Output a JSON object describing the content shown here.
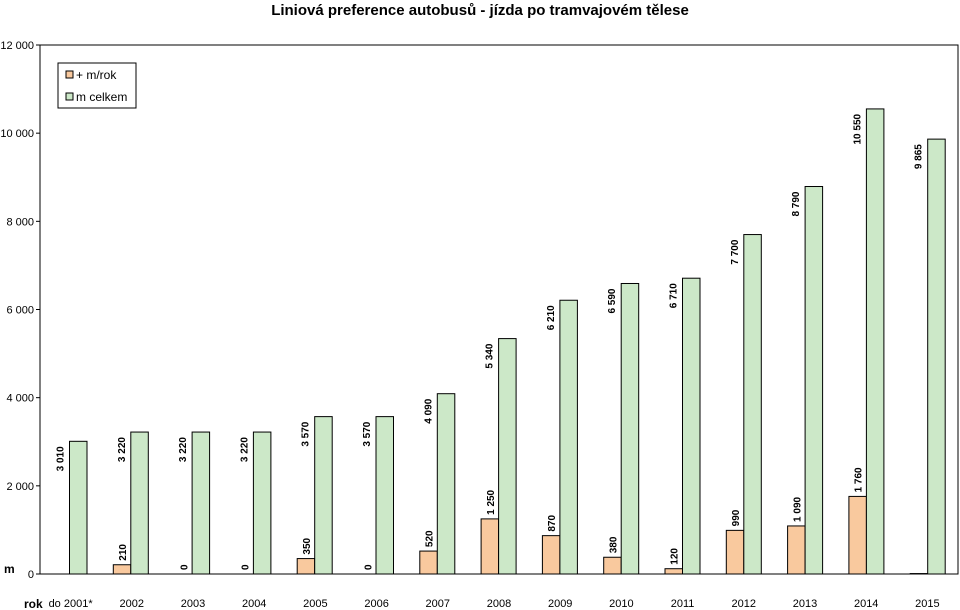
{
  "chart_data": {
    "type": "bar",
    "title": "Liniová preference autobusů - jízda po tramvajovém tělese",
    "xlabel": "rok",
    "ylabel": "m",
    "categories": [
      "do 2001*",
      "2002",
      "2003",
      "2004",
      "2005",
      "2006",
      "2007",
      "2008",
      "2009",
      "2010",
      "2011",
      "2012",
      "2013",
      "2014",
      "2015"
    ],
    "series": [
      {
        "name": "+ m/rok",
        "color": "#F9C99E",
        "values": [
          null,
          210,
          0,
          0,
          350,
          0,
          520,
          1250,
          870,
          380,
          120,
          990,
          1090,
          1760,
          10
        ],
        "labels": [
          "",
          "210",
          "0",
          "0",
          "350",
          "0",
          "520",
          "1 250",
          "870",
          "380",
          "120",
          "990",
          "1 090",
          "1 760",
          ""
        ]
      },
      {
        "name": "m celkem",
        "color": "#CCE8C8",
        "values": [
          3010,
          3220,
          3220,
          3220,
          3570,
          3570,
          4090,
          5340,
          6210,
          6590,
          6710,
          7700,
          8790,
          10550,
          9865
        ],
        "labels": [
          "3 010",
          "3 220",
          "3 220",
          "3 220",
          "3 570",
          "3 570",
          "4 090",
          "5 340",
          "6 210",
          "6 590",
          "6 710",
          "7 700",
          "8 790",
          "10 550",
          "9 865"
        ]
      }
    ],
    "yticks": [
      0,
      2000,
      4000,
      6000,
      8000,
      10000,
      12000
    ],
    "ytick_labels": [
      "0",
      "2 000",
      "4 000",
      "6 000",
      "8 000",
      "10 000",
      "12 000"
    ],
    "ylim": [
      0,
      12000
    ],
    "legend": "top-left",
    "grid": false
  }
}
